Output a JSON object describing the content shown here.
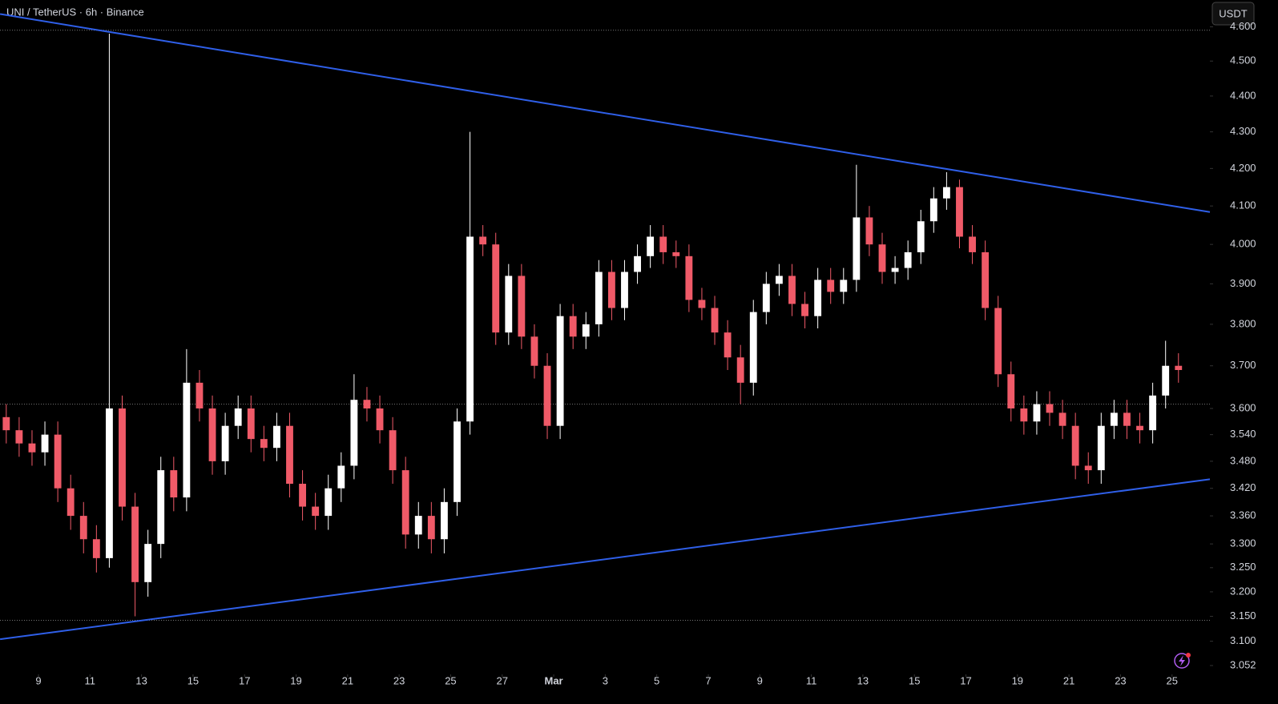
{
  "chart_data": {
    "type": "candlestick",
    "title": "UNI / TetherUS · 6h · Binance",
    "currency_button": "USDT",
    "log_scale": true,
    "up_color": "#ffffff",
    "down_color": "#f05a68",
    "trendline_color": "#2f5fe8",
    "x": [
      7.75,
      8.25,
      8.75,
      9.25,
      9.75,
      10.25,
      10.75,
      11.25,
      11.75,
      12.25,
      12.75,
      13.25,
      13.75,
      14.25,
      14.75,
      15.25,
      15.75,
      16.25,
      16.75,
      17.25,
      17.75,
      18.25,
      18.75,
      19.25,
      19.75,
      20.25,
      20.75,
      21.25,
      21.75,
      22.25,
      22.75,
      23.25,
      23.75,
      24.25,
      24.75,
      25.25,
      25.75,
      26.25,
      26.75,
      27.25,
      27.75,
      28.25,
      28.75,
      29.25,
      29.75,
      30.25,
      30.75,
      31.25,
      31.75,
      32.25,
      32.75,
      33.25,
      33.75,
      34.25,
      34.75,
      35.25,
      35.75,
      36.25,
      36.75,
      37.25,
      37.75,
      38.25,
      38.75,
      39.25,
      39.75,
      40.25,
      40.75,
      41.25,
      41.75,
      42.25,
      42.75,
      43.25,
      43.75,
      44.25,
      44.75,
      45.25,
      45.75,
      46.25,
      46.75,
      47.25,
      47.75,
      48.25,
      48.75,
      49.25,
      49.75,
      50.25,
      50.75,
      51.25,
      51.75,
      52.25,
      52.75,
      53.25
    ],
    "open": [
      3.58,
      3.55,
      3.52,
      3.5,
      3.54,
      3.42,
      3.36,
      3.31,
      3.27,
      3.6,
      3.38,
      3.22,
      3.3,
      3.46,
      3.4,
      3.66,
      3.6,
      3.48,
      3.56,
      3.6,
      3.53,
      3.51,
      3.56,
      3.43,
      3.38,
      3.36,
      3.42,
      3.47,
      3.62,
      3.6,
      3.55,
      3.46,
      3.32,
      3.36,
      3.31,
      3.39,
      3.57,
      4.02,
      4.0,
      3.78,
      3.92,
      3.77,
      3.7,
      3.56,
      3.82,
      3.77,
      3.8,
      3.93,
      3.84,
      3.93,
      3.97,
      4.02,
      3.98,
      3.97,
      3.86,
      3.84,
      3.78,
      3.72,
      3.66,
      3.83,
      3.9,
      3.92,
      3.85,
      3.82,
      3.91,
      3.88,
      3.91,
      4.07,
      4.0,
      3.93,
      3.94,
      3.98,
      4.06,
      4.12,
      4.15,
      4.02,
      3.98,
      3.84,
      3.68,
      3.6,
      3.57,
      3.61,
      3.59,
      3.56,
      3.47,
      3.46,
      3.56,
      3.59,
      3.56,
      3.55,
      3.63,
      3.7
    ],
    "high": [
      3.61,
      3.58,
      3.55,
      3.57,
      3.57,
      3.45,
      3.39,
      3.34,
      4.58,
      3.63,
      3.41,
      3.33,
      3.49,
      3.49,
      3.74,
      3.69,
      3.63,
      3.59,
      3.63,
      3.63,
      3.56,
      3.59,
      3.59,
      3.46,
      3.41,
      3.45,
      3.5,
      3.68,
      3.65,
      3.63,
      3.58,
      3.49,
      3.39,
      3.39,
      3.42,
      3.6,
      4.3,
      4.05,
      4.03,
      3.95,
      3.95,
      3.8,
      3.73,
      3.85,
      3.85,
      3.83,
      3.96,
      3.96,
      3.96,
      4.0,
      4.05,
      4.05,
      4.01,
      4.0,
      3.89,
      3.87,
      3.81,
      3.75,
      3.86,
      3.93,
      3.95,
      3.95,
      3.88,
      3.94,
      3.94,
      3.94,
      4.21,
      4.1,
      4.03,
      3.97,
      4.01,
      4.09,
      4.15,
      4.19,
      4.17,
      4.05,
      4.01,
      3.87,
      3.71,
      3.63,
      3.64,
      3.64,
      3.62,
      3.59,
      3.5,
      3.59,
      3.62,
      3.62,
      3.59,
      3.66,
      3.76,
      3.73
    ],
    "low": [
      3.52,
      3.49,
      3.47,
      3.47,
      3.39,
      3.33,
      3.28,
      3.24,
      3.25,
      3.35,
      3.15,
      3.19,
      3.27,
      3.37,
      3.37,
      3.57,
      3.45,
      3.45,
      3.53,
      3.5,
      3.48,
      3.48,
      3.4,
      3.35,
      3.33,
      3.33,
      3.39,
      3.44,
      3.57,
      3.52,
      3.43,
      3.29,
      3.29,
      3.28,
      3.28,
      3.36,
      3.54,
      3.97,
      3.75,
      3.75,
      3.74,
      3.67,
      3.53,
      3.53,
      3.74,
      3.74,
      3.77,
      3.81,
      3.81,
      3.9,
      3.94,
      3.95,
      3.94,
      3.83,
      3.81,
      3.75,
      3.69,
      3.61,
      3.63,
      3.8,
      3.87,
      3.82,
      3.79,
      3.79,
      3.85,
      3.85,
      3.88,
      3.97,
      3.9,
      3.9,
      3.91,
      3.95,
      4.03,
      4.09,
      3.99,
      3.95,
      3.81,
      3.65,
      3.57,
      3.54,
      3.54,
      3.56,
      3.53,
      3.44,
      3.43,
      3.43,
      3.53,
      3.53,
      3.52,
      3.52,
      3.6,
      3.66
    ],
    "close": [
      3.55,
      3.52,
      3.5,
      3.54,
      3.42,
      3.36,
      3.31,
      3.27,
      3.6,
      3.38,
      3.22,
      3.3,
      3.46,
      3.4,
      3.66,
      3.6,
      3.48,
      3.56,
      3.6,
      3.53,
      3.51,
      3.56,
      3.43,
      3.38,
      3.36,
      3.42,
      3.47,
      3.62,
      3.6,
      3.55,
      3.46,
      3.32,
      3.36,
      3.31,
      3.39,
      3.57,
      4.02,
      4.0,
      3.78,
      3.92,
      3.77,
      3.7,
      3.56,
      3.82,
      3.77,
      3.8,
      3.93,
      3.84,
      3.93,
      3.97,
      4.02,
      3.98,
      3.97,
      3.86,
      3.84,
      3.78,
      3.72,
      3.66,
      3.83,
      3.9,
      3.92,
      3.85,
      3.82,
      3.91,
      3.88,
      3.91,
      4.07,
      4.0,
      3.93,
      3.94,
      3.98,
      4.06,
      4.12,
      4.15,
      4.02,
      3.98,
      3.84,
      3.68,
      3.6,
      3.57,
      3.61,
      3.59,
      3.56,
      3.47,
      3.46,
      3.56,
      3.59,
      3.56,
      3.55,
      3.63,
      3.7,
      3.69
    ],
    "trendlines": [
      {
        "x": [
          7.51,
          54.47
        ],
        "y": [
          4.638,
          4.084
        ]
      },
      {
        "x": [
          7.51,
          54.47
        ],
        "y": [
          3.104,
          3.44
        ]
      }
    ],
    "levels": [
      4.59,
      3.61,
      3.142
    ],
    "xlim": [
      7.507,
      54.47
    ],
    "ylim": [
      3.041,
      4.68
    ],
    "xticks": [
      9,
      11,
      13,
      15,
      17,
      19,
      21,
      23,
      25,
      27,
      {
        "value": 29,
        "label": "Mar"
      },
      {
        "value": 31,
        "label": "3"
      },
      {
        "value": 33,
        "label": "5"
      },
      {
        "value": 35,
        "label": "7"
      },
      {
        "value": 37,
        "label": "9"
      },
      {
        "value": 39,
        "label": "11"
      },
      {
        "value": 41,
        "label": "13"
      },
      {
        "value": 43,
        "label": "15"
      },
      {
        "value": 45,
        "label": "17"
      },
      {
        "value": 47,
        "label": "19"
      },
      {
        "value": 49,
        "label": "21"
      },
      {
        "value": 51,
        "label": "23"
      },
      {
        "value": 53,
        "label": "25"
      }
    ],
    "yticks": [
      {
        "value": 3.052,
        "label": "3.052"
      },
      {
        "value": 3.1,
        "label": "3.100"
      },
      {
        "value": 3.15,
        "label": "3.150"
      },
      {
        "value": 3.2,
        "label": "3.200"
      },
      {
        "value": 3.25,
        "label": "3.250"
      },
      {
        "value": 3.3,
        "label": "3.300"
      },
      {
        "value": 3.36,
        "label": "3.360"
      },
      {
        "value": 3.42,
        "label": "3.420"
      },
      {
        "value": 3.48,
        "label": "3.480"
      },
      {
        "value": 3.54,
        "label": "3.540"
      },
      {
        "value": 3.6,
        "label": "3.600"
      },
      {
        "value": 3.7,
        "label": "3.700"
      },
      {
        "value": 3.8,
        "label": "3.800"
      },
      {
        "value": 3.9,
        "label": "3.900"
      },
      {
        "value": 4.0,
        "label": "4.000"
      },
      {
        "value": 4.1,
        "label": "4.100"
      },
      {
        "value": 4.2,
        "label": "4.200"
      },
      {
        "value": 4.3,
        "label": "4.300"
      },
      {
        "value": 4.4,
        "label": "4.400"
      },
      {
        "value": 4.5,
        "label": "4.500"
      },
      {
        "value": 4.6,
        "label": "4.600"
      }
    ]
  }
}
